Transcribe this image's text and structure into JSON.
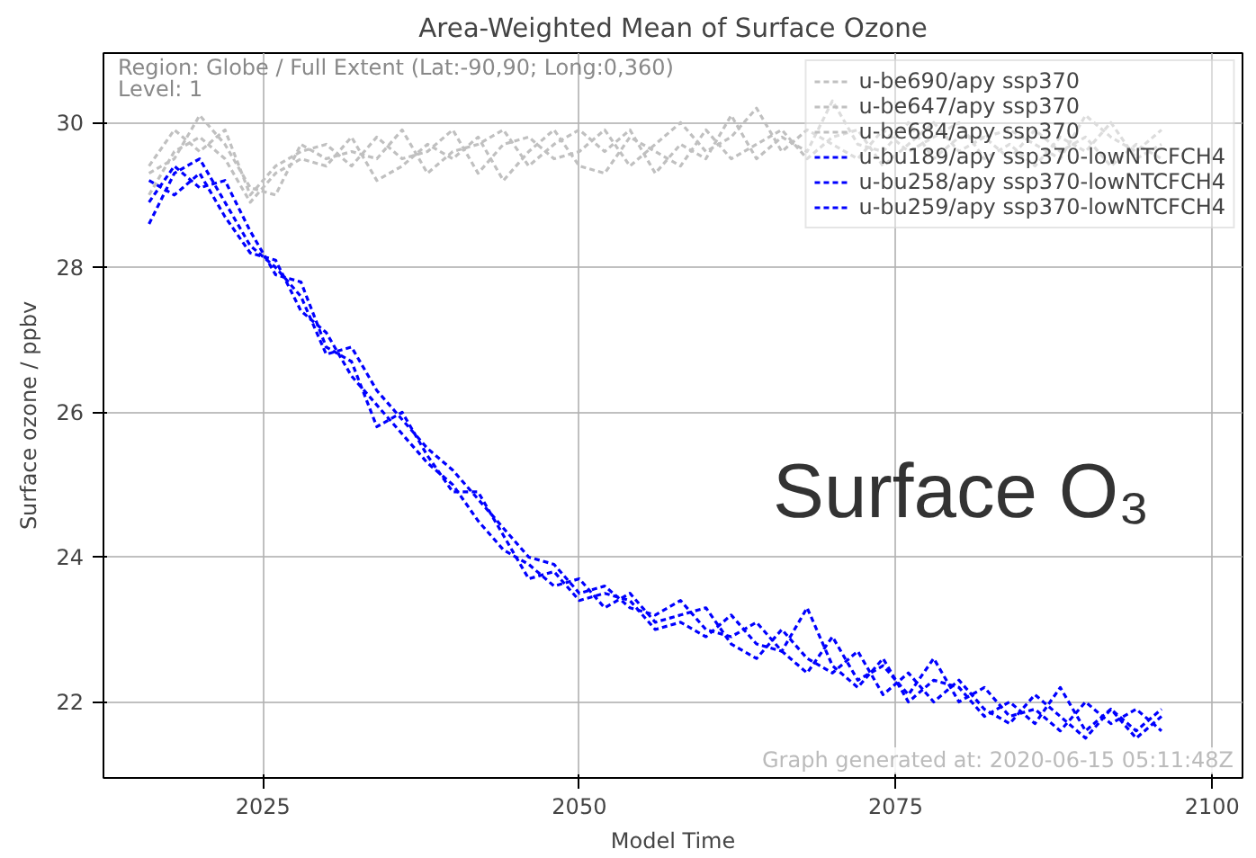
{
  "chart_data": {
    "type": "line",
    "title": "Area-Weighted Mean of Surface Ozone",
    "xlabel": "Model Time",
    "ylabel": "Surface ozone / ppbv",
    "annotations": [
      "Region: Globe / Full Extent (Lat:-90,90; Long:0,360)",
      "Level: 1",
      "Surface O₃",
      "Graph generated at: 2020-06-15 05:11:48Z"
    ],
    "x": [
      2016,
      2018,
      2020,
      2022,
      2024,
      2026,
      2028,
      2030,
      2032,
      2034,
      2036,
      2038,
      2040,
      2042,
      2044,
      2046,
      2048,
      2050,
      2052,
      2054,
      2056,
      2058,
      2060,
      2062,
      2064,
      2066,
      2068,
      2070,
      2072,
      2074,
      2076,
      2078,
      2080,
      2082,
      2084,
      2086,
      2088,
      2090,
      2092,
      2094,
      2096
    ],
    "xlim": [
      2012.4,
      2102.4
    ],
    "xticks": [
      2025,
      2050,
      2075,
      2100
    ],
    "ylim": [
      20.95,
      30.96
    ],
    "yticks": [
      22,
      24,
      26,
      28,
      30
    ],
    "grid": true,
    "legend": "top right",
    "line_style": "dashed",
    "marker": "none",
    "series": [
      {
        "name": "u-be690/apy ssp370",
        "color": "#c0c0c0",
        "values": [
          29.4,
          29.9,
          29.6,
          29.9,
          29.0,
          29.4,
          29.6,
          29.7,
          29.4,
          29.8,
          29.5,
          29.6,
          29.9,
          29.3,
          29.7,
          29.8,
          29.5,
          29.6,
          29.9,
          29.4,
          29.7,
          30.0,
          29.6,
          29.8,
          30.2,
          29.6,
          29.9,
          29.7,
          29.5,
          29.9,
          29.6,
          29.8,
          30.0,
          29.5,
          29.7,
          29.4,
          29.8,
          29.6,
          30.0,
          29.5,
          29.7
        ]
      },
      {
        "name": "u-be647/apy ssp370",
        "color": "#c0c0c0",
        "values": [
          29.0,
          29.6,
          29.8,
          29.5,
          28.9,
          29.3,
          29.5,
          29.4,
          29.8,
          29.2,
          29.4,
          29.7,
          29.5,
          29.8,
          29.2,
          29.6,
          29.9,
          29.4,
          29.3,
          29.8,
          29.6,
          29.4,
          29.9,
          29.5,
          29.7,
          29.9,
          29.5,
          29.8,
          29.9,
          29.4,
          29.7,
          30.0,
          29.6,
          29.8,
          29.5,
          29.9,
          29.6,
          29.8,
          29.4,
          29.7,
          29.5
        ]
      },
      {
        "name": "u-be684/apy ssp370",
        "color": "#c0c0c0",
        "values": [
          29.3,
          29.5,
          30.1,
          29.7,
          29.1,
          29.0,
          29.7,
          29.5,
          29.6,
          29.5,
          29.9,
          29.3,
          29.6,
          29.7,
          29.9,
          29.4,
          29.7,
          29.9,
          29.6,
          29.9,
          29.3,
          29.7,
          29.5,
          30.1,
          29.5,
          29.8,
          29.6,
          30.3,
          29.7,
          29.6,
          30.0,
          29.5,
          29.8,
          29.8,
          29.9,
          29.7,
          29.5,
          30.1,
          29.8,
          29.6,
          29.9
        ]
      },
      {
        "name": "u-bu189/apy ssp370-lowNTCFCH4",
        "color": "#0000ff",
        "values": [
          28.6,
          29.3,
          29.5,
          28.9,
          28.3,
          28.0,
          27.6,
          26.8,
          26.9,
          26.3,
          25.9,
          25.5,
          25.2,
          24.8,
          24.4,
          24.0,
          23.9,
          23.5,
          23.6,
          23.3,
          23.2,
          23.4,
          23.0,
          22.9,
          23.1,
          22.7,
          22.4,
          22.9,
          22.3,
          22.5,
          22.1,
          22.6,
          22.0,
          22.2,
          21.8,
          21.9,
          21.6,
          22.0,
          21.7,
          21.9,
          21.6
        ]
      },
      {
        "name": "u-bu258/apy ssp370-lowNTCFCH4",
        "color": "#0000ff",
        "values": [
          29.2,
          29.0,
          29.3,
          28.7,
          28.2,
          28.1,
          27.4,
          27.1,
          26.5,
          26.1,
          25.7,
          25.3,
          25.0,
          24.5,
          24.1,
          23.9,
          23.6,
          23.7,
          23.3,
          23.5,
          23.1,
          23.2,
          23.3,
          22.8,
          22.6,
          23.0,
          22.6,
          22.4,
          22.7,
          22.1,
          22.4,
          22.0,
          22.3,
          21.9,
          21.7,
          22.1,
          21.8,
          21.5,
          21.9,
          21.6,
          21.9
        ]
      },
      {
        "name": "u-bu259/apy ssp370-lowNTCFCH4",
        "color": "#0000ff",
        "values": [
          28.9,
          29.4,
          29.1,
          29.2,
          28.5,
          27.9,
          27.8,
          26.9,
          26.7,
          25.8,
          26.0,
          25.4,
          24.9,
          24.9,
          24.3,
          23.7,
          23.8,
          23.4,
          23.5,
          23.4,
          23.0,
          23.1,
          22.9,
          23.2,
          22.8,
          22.7,
          23.3,
          22.5,
          22.2,
          22.6,
          22.0,
          22.3,
          22.2,
          21.8,
          22.0,
          21.7,
          22.2,
          21.6,
          21.9,
          21.5,
          21.8
        ]
      }
    ]
  }
}
